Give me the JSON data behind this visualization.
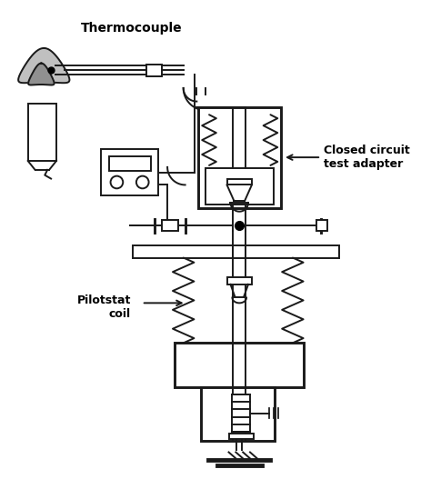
{
  "bg_color": "#ffffff",
  "line_color": "#1a1a1a",
  "lw": 1.4,
  "label_thermocouple": "Thermocouple",
  "label_closed_circuit": "Closed circuit\ntest adapter",
  "label_pilotstat": "Pilotstat\ncoil"
}
